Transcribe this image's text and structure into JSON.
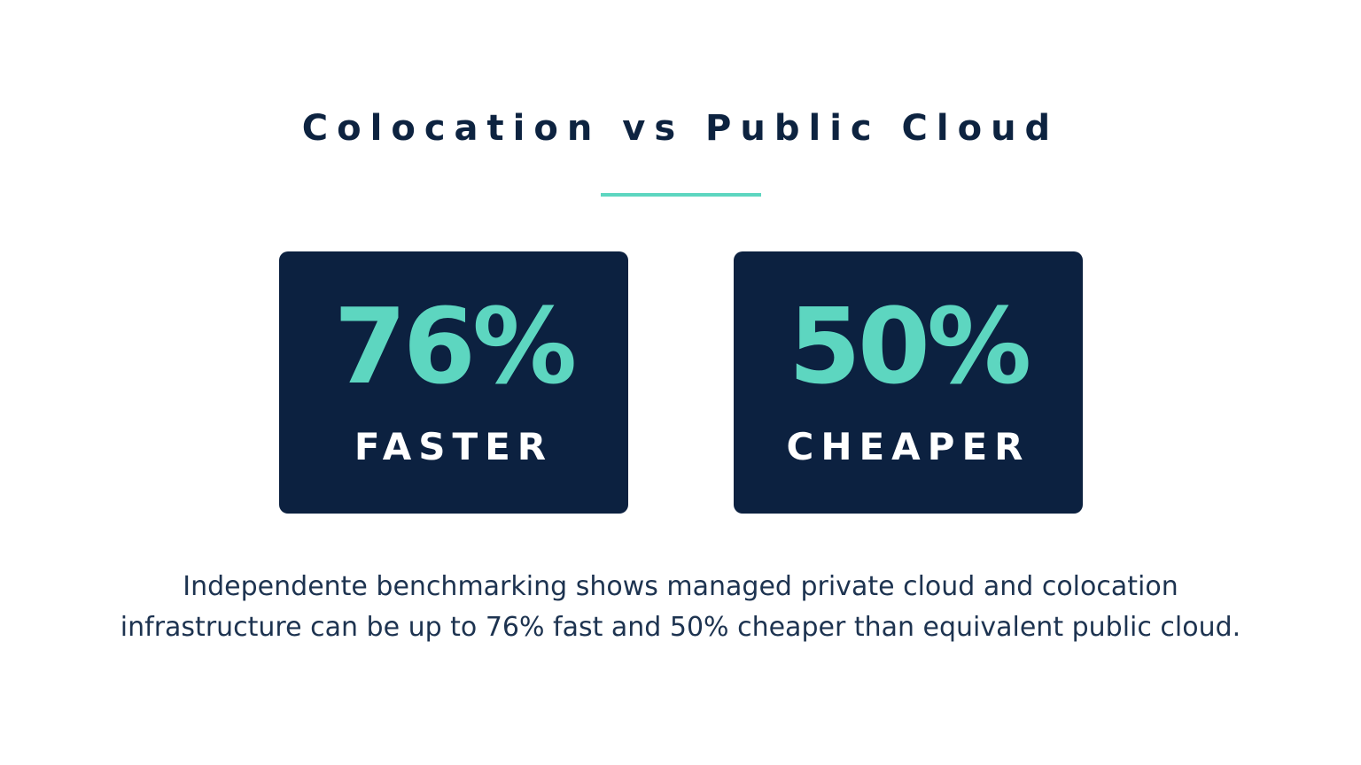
{
  "header": {
    "title": "Colocation vs Public Cloud"
  },
  "stats": [
    {
      "value": "76%",
      "label": "FASTER"
    },
    {
      "value": "50%",
      "label": "CHEAPER"
    }
  ],
  "description": {
    "lines": [
      "Independente benchmarking shows managed private cloud and colocation",
      "infrastructure can be up to 76% fast and 50% cheaper than equivalent public cloud."
    ]
  }
}
